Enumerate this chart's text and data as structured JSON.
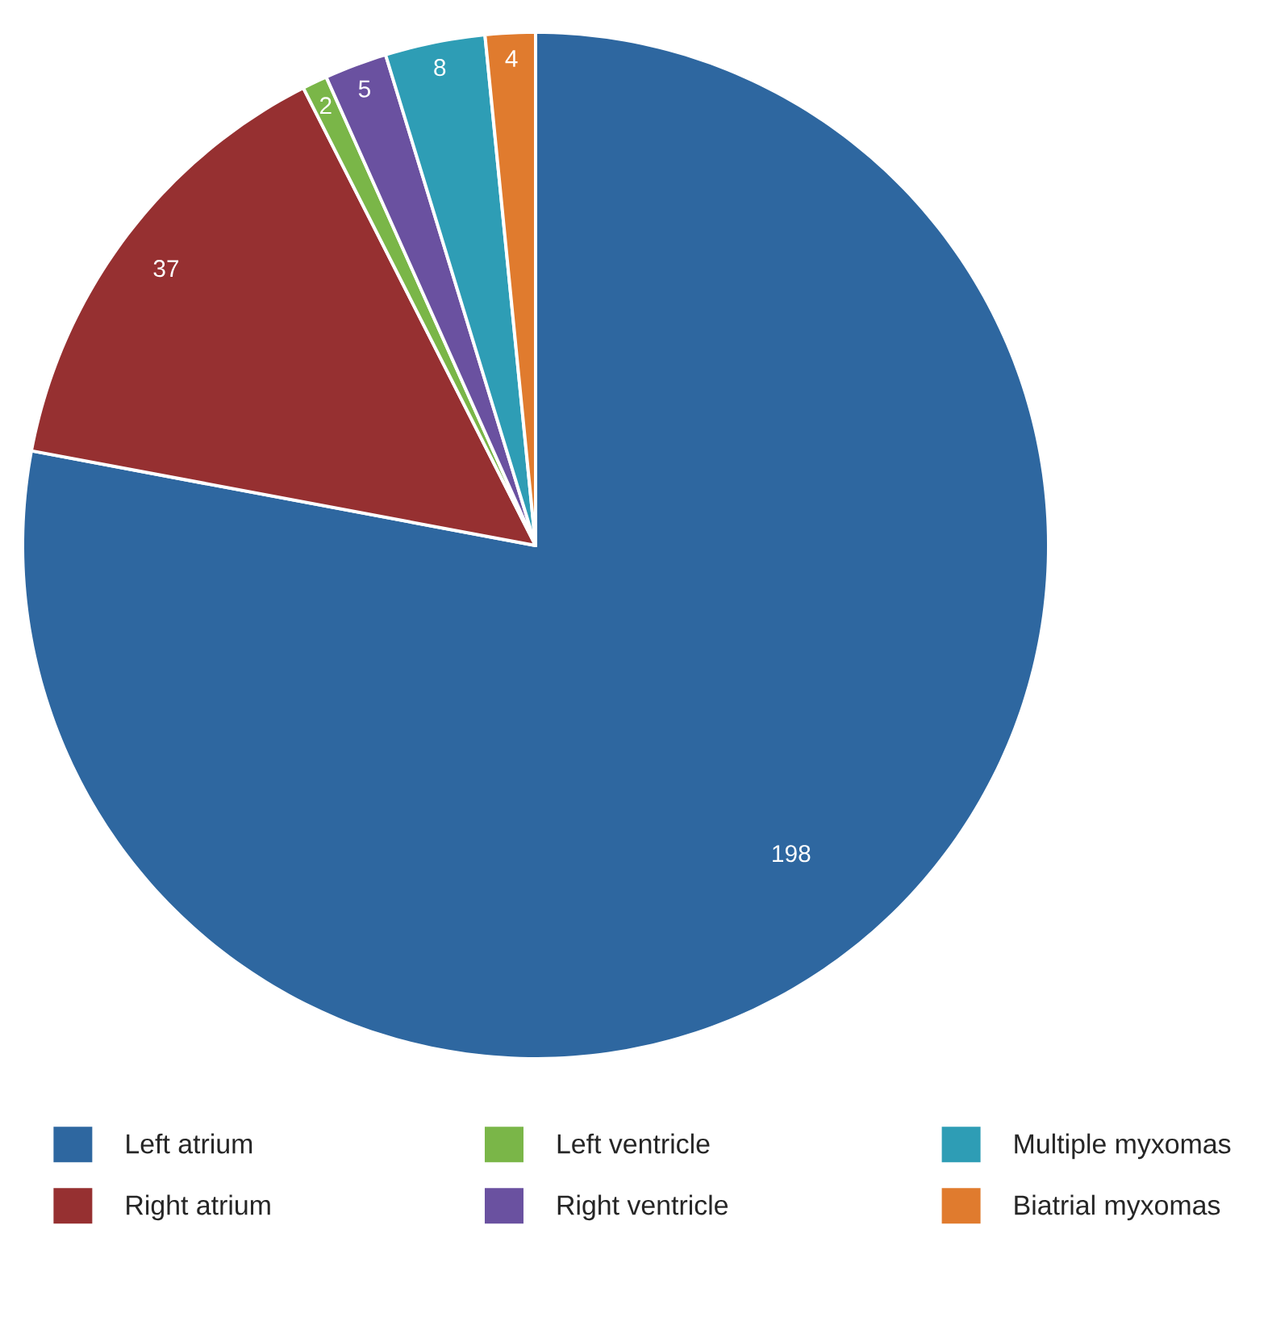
{
  "chart_data": {
    "type": "pie",
    "categories": [
      "Left atrium",
      "Right atrium",
      "Left ventricle",
      "Right ventricle",
      "Multiple myxomas",
      "Biatrial myxomas"
    ],
    "values": [
      198,
      37,
      2,
      5,
      8,
      4
    ],
    "colors": [
      "#2e67a0",
      "#963031",
      "#7ab648",
      "#6a51a0",
      "#2e9db5",
      "#e07b2e"
    ],
    "data_labels": true,
    "legend": "bottom"
  }
}
